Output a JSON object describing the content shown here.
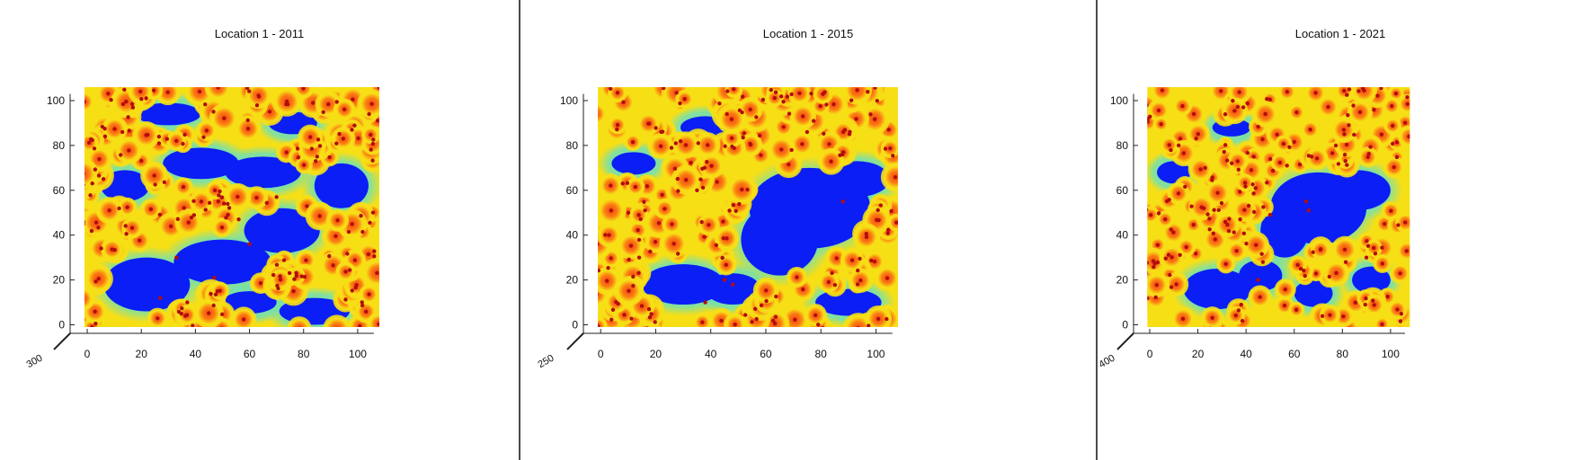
{
  "colors": {
    "gap": "#0a1ef5",
    "edge": "#6fe0b5",
    "mid": "#f7df16",
    "crown": "#fb7b12",
    "peak": "#f24812",
    "tree_top": "#b30d0d",
    "separator": "#4a4a4a"
  },
  "chart_data": [
    {
      "type": "heatmap",
      "title": "Location 1 - 2011",
      "xlabel": "",
      "ylabel": "",
      "xlim": [
        -3,
        109
      ],
      "ylim": [
        -3,
        108
      ],
      "xticks": [
        "0",
        "20",
        "40",
        "60",
        "80",
        "100"
      ],
      "yticks": [
        "0",
        "20",
        "40",
        "60",
        "80",
        "100"
      ],
      "z_tick_label": "300",
      "gaps": [
        {
          "x": 22,
          "y": 18,
          "rx": 16,
          "ry": 12
        },
        {
          "x": 50,
          "y": 28,
          "rx": 18,
          "ry": 10
        },
        {
          "x": 72,
          "y": 42,
          "rx": 14,
          "ry": 10
        },
        {
          "x": 94,
          "y": 62,
          "rx": 10,
          "ry": 10
        },
        {
          "x": 65,
          "y": 68,
          "rx": 14,
          "ry": 7
        },
        {
          "x": 42,
          "y": 72,
          "rx": 14,
          "ry": 7
        },
        {
          "x": 14,
          "y": 62,
          "rx": 9,
          "ry": 7
        },
        {
          "x": 84,
          "y": 6,
          "rx": 13,
          "ry": 6
        },
        {
          "x": 60,
          "y": 10,
          "rx": 10,
          "ry": 5
        },
        {
          "x": 30,
          "y": 94,
          "rx": 12,
          "ry": 5
        },
        {
          "x": 76,
          "y": 90,
          "rx": 9,
          "ry": 5
        }
      ],
      "tree_tops": [
        [
          37,
          10
        ],
        [
          33,
          30
        ],
        [
          6,
          65
        ],
        [
          56,
          47
        ],
        [
          70,
          57
        ],
        [
          13,
          86
        ],
        [
          47,
          21
        ],
        [
          60,
          36
        ],
        [
          27,
          12
        ],
        [
          85,
          75
        ]
      ]
    },
    {
      "type": "heatmap",
      "title": "Location 1 - 2015",
      "xlabel": "",
      "ylabel": "",
      "xlim": [
        -3,
        109
      ],
      "ylim": [
        -3,
        108
      ],
      "xticks": [
        "0",
        "20",
        "40",
        "60",
        "80",
        "100"
      ],
      "yticks": [
        "0",
        "20",
        "40",
        "60",
        "80",
        "100"
      ],
      "z_tick_label": "250",
      "gaps": [
        {
          "x": 76,
          "y": 52,
          "rx": 22,
          "ry": 18
        },
        {
          "x": 65,
          "y": 38,
          "rx": 14,
          "ry": 16
        },
        {
          "x": 93,
          "y": 65,
          "rx": 12,
          "ry": 8
        },
        {
          "x": 30,
          "y": 18,
          "rx": 15,
          "ry": 9
        },
        {
          "x": 48,
          "y": 16,
          "rx": 10,
          "ry": 7
        },
        {
          "x": 12,
          "y": 72,
          "rx": 8,
          "ry": 5
        },
        {
          "x": 90,
          "y": 10,
          "rx": 12,
          "ry": 6
        },
        {
          "x": 38,
          "y": 88,
          "rx": 9,
          "ry": 5
        }
      ],
      "tree_tops": [
        [
          38,
          10
        ],
        [
          45,
          20
        ],
        [
          48,
          18
        ],
        [
          8,
          63
        ],
        [
          14,
          30
        ],
        [
          22,
          86
        ],
        [
          35,
          60
        ],
        [
          75,
          86
        ],
        [
          88,
          55
        ]
      ]
    },
    {
      "type": "heatmap",
      "title": "Location 1 - 2021",
      "xlabel": "",
      "ylabel": "",
      "xlim": [
        -3,
        109
      ],
      "ylim": [
        -3,
        108
      ],
      "xticks": [
        "0",
        "20",
        "40",
        "60",
        "80",
        "100"
      ],
      "yticks": [
        "0",
        "20",
        "40",
        "60",
        "80",
        "100"
      ],
      "z_tick_label": "400",
      "gaps": [
        {
          "x": 70,
          "y": 52,
          "rx": 20,
          "ry": 16
        },
        {
          "x": 86,
          "y": 60,
          "rx": 14,
          "ry": 9
        },
        {
          "x": 56,
          "y": 42,
          "rx": 10,
          "ry": 12
        },
        {
          "x": 28,
          "y": 16,
          "rx": 14,
          "ry": 9
        },
        {
          "x": 46,
          "y": 22,
          "rx": 9,
          "ry": 7
        },
        {
          "x": 68,
          "y": 14,
          "rx": 8,
          "ry": 6
        },
        {
          "x": 92,
          "y": 20,
          "rx": 8,
          "ry": 6
        },
        {
          "x": 10,
          "y": 68,
          "rx": 7,
          "ry": 5
        },
        {
          "x": 34,
          "y": 88,
          "rx": 8,
          "ry": 4
        }
      ],
      "tree_tops": [
        [
          57,
          71
        ],
        [
          65,
          55
        ],
        [
          66,
          51
        ],
        [
          50,
          49
        ],
        [
          38,
          9
        ],
        [
          45,
          20
        ],
        [
          47,
          28
        ],
        [
          12,
          80
        ],
        [
          90,
          30
        ]
      ]
    }
  ]
}
